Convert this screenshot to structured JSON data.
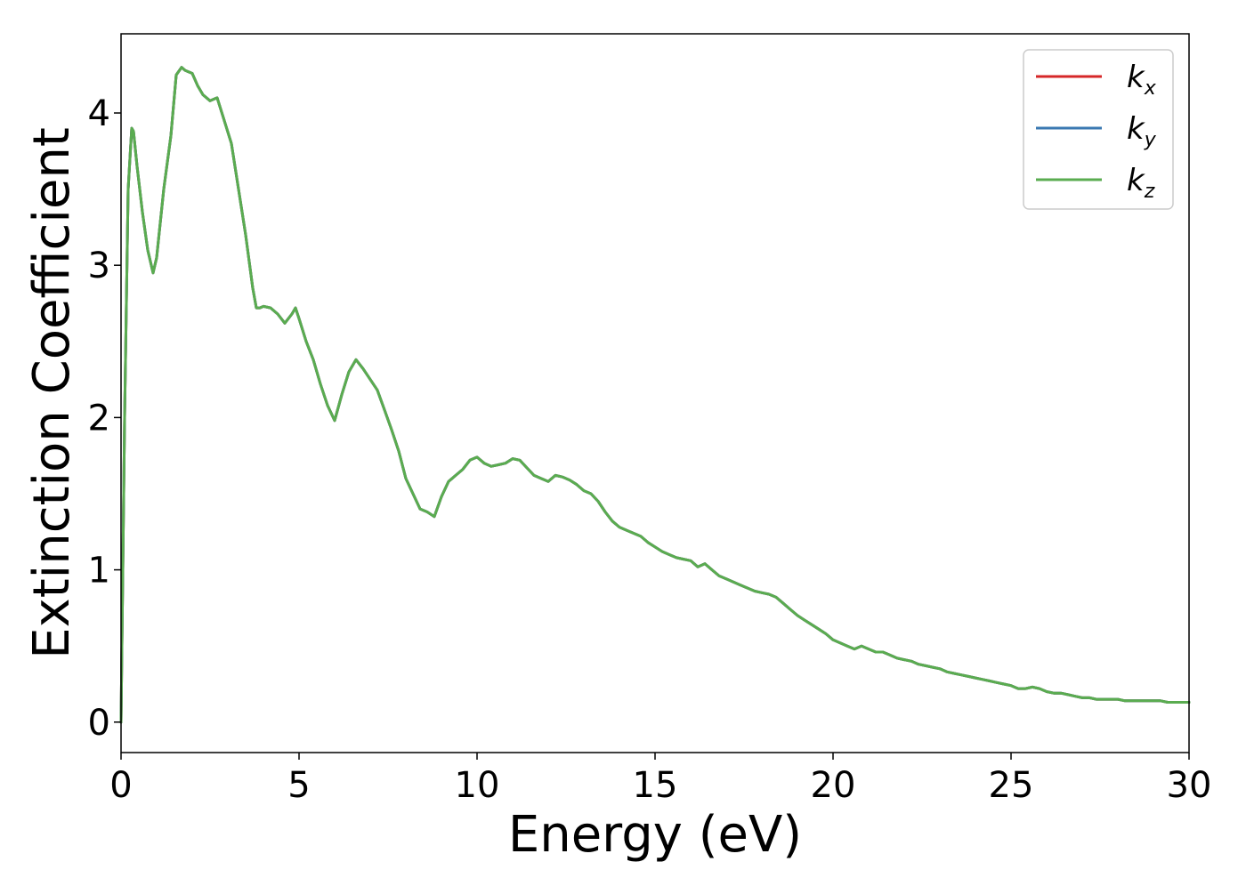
{
  "chart_data": {
    "type": "line",
    "title": "",
    "xlabel": "Energy (eV)",
    "ylabel": "Extinction Coefficient",
    "xlim": [
      0,
      30
    ],
    "ylim": [
      -0.2,
      4.52
    ],
    "xticks": [
      0,
      5,
      10,
      15,
      20,
      25,
      30
    ],
    "yticks": [
      0,
      1,
      2,
      3,
      4
    ],
    "grid": false,
    "legend_position": "top-right",
    "x": [
      0,
      0.1,
      0.2,
      0.3,
      0.35,
      0.45,
      0.6,
      0.75,
      0.9,
      1.0,
      1.2,
      1.4,
      1.55,
      1.7,
      1.8,
      2.0,
      2.15,
      2.3,
      2.5,
      2.7,
      2.9,
      3.1,
      3.3,
      3.5,
      3.7,
      3.8,
      3.9,
      4.0,
      4.2,
      4.4,
      4.6,
      4.8,
      4.9,
      5.0,
      5.2,
      5.4,
      5.6,
      5.8,
      6.0,
      6.2,
      6.4,
      6.6,
      6.8,
      7.0,
      7.2,
      7.4,
      7.6,
      7.8,
      8.0,
      8.2,
      8.4,
      8.6,
      8.8,
      9.0,
      9.2,
      9.4,
      9.6,
      9.8,
      10.0,
      10.2,
      10.4,
      10.6,
      10.8,
      11.0,
      11.2,
      11.4,
      11.6,
      11.8,
      12.0,
      12.2,
      12.4,
      12.6,
      12.8,
      13.0,
      13.2,
      13.4,
      13.6,
      13.8,
      14.0,
      14.2,
      14.4,
      14.6,
      14.8,
      15.0,
      15.2,
      15.4,
      15.6,
      15.8,
      16.0,
      16.2,
      16.4,
      16.6,
      16.8,
      17.0,
      17.2,
      17.4,
      17.6,
      17.8,
      18.0,
      18.2,
      18.4,
      18.6,
      18.8,
      19.0,
      19.2,
      19.4,
      19.6,
      19.8,
      20.0,
      20.2,
      20.4,
      20.6,
      20.8,
      21.0,
      21.2,
      21.4,
      21.6,
      21.8,
      22.0,
      22.2,
      22.4,
      22.6,
      22.8,
      23.0,
      23.2,
      23.4,
      23.6,
      23.8,
      24.0,
      24.2,
      24.4,
      24.6,
      24.8,
      25.0,
      25.2,
      25.4,
      25.6,
      25.8,
      26.0,
      26.2,
      26.4,
      26.6,
      26.8,
      27.0,
      27.2,
      27.4,
      27.6,
      27.8,
      28.0,
      28.2,
      28.4,
      28.6,
      28.8,
      29.0,
      29.2,
      29.4,
      29.6,
      29.8,
      30.0
    ],
    "series": [
      {
        "name": "k_x",
        "label_base": "k",
        "label_sub": "x",
        "color": "#d62728",
        "values": [
          0.0,
          2.0,
          3.5,
          3.9,
          3.88,
          3.65,
          3.35,
          3.1,
          2.95,
          3.05,
          3.5,
          3.85,
          4.25,
          4.3,
          4.28,
          4.26,
          4.18,
          4.12,
          4.08,
          4.1,
          3.95,
          3.8,
          3.5,
          3.2,
          2.85,
          2.72,
          2.72,
          2.73,
          2.72,
          2.68,
          2.62,
          2.68,
          2.72,
          2.65,
          2.5,
          2.38,
          2.22,
          2.08,
          1.98,
          2.15,
          2.3,
          2.38,
          2.32,
          2.25,
          2.18,
          2.05,
          1.92,
          1.78,
          1.6,
          1.5,
          1.4,
          1.38,
          1.35,
          1.48,
          1.58,
          1.62,
          1.66,
          1.72,
          1.74,
          1.7,
          1.68,
          1.69,
          1.7,
          1.73,
          1.72,
          1.67,
          1.62,
          1.6,
          1.58,
          1.62,
          1.61,
          1.59,
          1.56,
          1.52,
          1.5,
          1.45,
          1.38,
          1.32,
          1.28,
          1.26,
          1.24,
          1.22,
          1.18,
          1.15,
          1.12,
          1.1,
          1.08,
          1.07,
          1.06,
          1.02,
          1.04,
          1.0,
          0.96,
          0.94,
          0.92,
          0.9,
          0.88,
          0.86,
          0.85,
          0.84,
          0.82,
          0.78,
          0.74,
          0.7,
          0.67,
          0.64,
          0.61,
          0.58,
          0.54,
          0.52,
          0.5,
          0.48,
          0.5,
          0.48,
          0.46,
          0.46,
          0.44,
          0.42,
          0.41,
          0.4,
          0.38,
          0.37,
          0.36,
          0.35,
          0.33,
          0.32,
          0.31,
          0.3,
          0.29,
          0.28,
          0.27,
          0.26,
          0.25,
          0.24,
          0.22,
          0.22,
          0.23,
          0.22,
          0.2,
          0.19,
          0.19,
          0.18,
          0.17,
          0.16,
          0.16,
          0.15,
          0.15,
          0.15,
          0.15,
          0.14,
          0.14,
          0.14,
          0.14,
          0.14,
          0.14,
          0.13,
          0.13,
          0.13,
          0.13
        ]
      },
      {
        "name": "k_y",
        "label_base": "k",
        "label_sub": "y",
        "color": "#3a78b2",
        "values": [
          0.0,
          2.0,
          3.5,
          3.9,
          3.88,
          3.65,
          3.35,
          3.1,
          2.95,
          3.05,
          3.5,
          3.85,
          4.25,
          4.3,
          4.28,
          4.26,
          4.18,
          4.12,
          4.08,
          4.1,
          3.95,
          3.8,
          3.5,
          3.2,
          2.85,
          2.72,
          2.72,
          2.73,
          2.72,
          2.68,
          2.62,
          2.68,
          2.72,
          2.65,
          2.5,
          2.38,
          2.22,
          2.08,
          1.98,
          2.15,
          2.3,
          2.38,
          2.32,
          2.25,
          2.18,
          2.05,
          1.92,
          1.78,
          1.6,
          1.5,
          1.4,
          1.38,
          1.35,
          1.48,
          1.58,
          1.62,
          1.66,
          1.72,
          1.74,
          1.7,
          1.68,
          1.69,
          1.7,
          1.73,
          1.72,
          1.67,
          1.62,
          1.6,
          1.58,
          1.62,
          1.61,
          1.59,
          1.56,
          1.52,
          1.5,
          1.45,
          1.38,
          1.32,
          1.28,
          1.26,
          1.24,
          1.22,
          1.18,
          1.15,
          1.12,
          1.1,
          1.08,
          1.07,
          1.06,
          1.02,
          1.04,
          1.0,
          0.96,
          0.94,
          0.92,
          0.9,
          0.88,
          0.86,
          0.85,
          0.84,
          0.82,
          0.78,
          0.74,
          0.7,
          0.67,
          0.64,
          0.61,
          0.58,
          0.54,
          0.52,
          0.5,
          0.48,
          0.5,
          0.48,
          0.46,
          0.46,
          0.44,
          0.42,
          0.41,
          0.4,
          0.38,
          0.37,
          0.36,
          0.35,
          0.33,
          0.32,
          0.31,
          0.3,
          0.29,
          0.28,
          0.27,
          0.26,
          0.25,
          0.24,
          0.22,
          0.22,
          0.23,
          0.22,
          0.2,
          0.19,
          0.19,
          0.18,
          0.17,
          0.16,
          0.16,
          0.15,
          0.15,
          0.15,
          0.15,
          0.14,
          0.14,
          0.14,
          0.14,
          0.14,
          0.14,
          0.13,
          0.13,
          0.13,
          0.13
        ]
      },
      {
        "name": "k_z",
        "label_base": "k",
        "label_sub": "z",
        "color": "#5aac50",
        "values": [
          0.0,
          2.0,
          3.5,
          3.9,
          3.88,
          3.65,
          3.35,
          3.1,
          2.95,
          3.05,
          3.5,
          3.85,
          4.25,
          4.3,
          4.28,
          4.26,
          4.18,
          4.12,
          4.08,
          4.1,
          3.95,
          3.8,
          3.5,
          3.2,
          2.85,
          2.72,
          2.72,
          2.73,
          2.72,
          2.68,
          2.62,
          2.68,
          2.72,
          2.65,
          2.5,
          2.38,
          2.22,
          2.08,
          1.98,
          2.15,
          2.3,
          2.38,
          2.32,
          2.25,
          2.18,
          2.05,
          1.92,
          1.78,
          1.6,
          1.5,
          1.4,
          1.38,
          1.35,
          1.48,
          1.58,
          1.62,
          1.66,
          1.72,
          1.74,
          1.7,
          1.68,
          1.69,
          1.7,
          1.73,
          1.72,
          1.67,
          1.62,
          1.6,
          1.58,
          1.62,
          1.61,
          1.59,
          1.56,
          1.52,
          1.5,
          1.45,
          1.38,
          1.32,
          1.28,
          1.26,
          1.24,
          1.22,
          1.18,
          1.15,
          1.12,
          1.1,
          1.08,
          1.07,
          1.06,
          1.02,
          1.04,
          1.0,
          0.96,
          0.94,
          0.92,
          0.9,
          0.88,
          0.86,
          0.85,
          0.84,
          0.82,
          0.78,
          0.74,
          0.7,
          0.67,
          0.64,
          0.61,
          0.58,
          0.54,
          0.52,
          0.5,
          0.48,
          0.5,
          0.48,
          0.46,
          0.46,
          0.44,
          0.42,
          0.41,
          0.4,
          0.38,
          0.37,
          0.36,
          0.35,
          0.33,
          0.32,
          0.31,
          0.3,
          0.29,
          0.28,
          0.27,
          0.26,
          0.25,
          0.24,
          0.22,
          0.22,
          0.23,
          0.22,
          0.2,
          0.19,
          0.19,
          0.18,
          0.17,
          0.16,
          0.16,
          0.15,
          0.15,
          0.15,
          0.15,
          0.14,
          0.14,
          0.14,
          0.14,
          0.14,
          0.14,
          0.13,
          0.13,
          0.13,
          0.13
        ]
      }
    ]
  }
}
